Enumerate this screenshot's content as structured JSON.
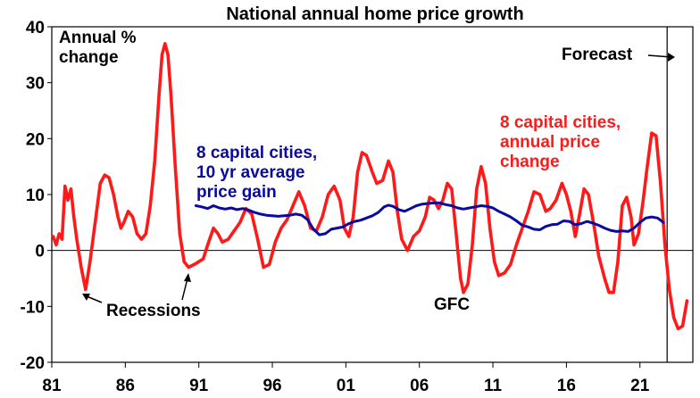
{
  "chart_data": {
    "type": "line",
    "title": "National annual home price growth",
    "ylabel_lines": [
      "Annual %",
      "change"
    ],
    "xlabel": "",
    "x_ticks": [
      "81",
      "86",
      "91",
      "96",
      "01",
      "06",
      "11",
      "16",
      "21"
    ],
    "x_tick_years": [
      1981,
      1986,
      1991,
      1996,
      2001,
      2006,
      2011,
      2016,
      2021
    ],
    "y_ticks": [
      "40",
      "30",
      "20",
      "10",
      "0",
      "-10",
      "-20"
    ],
    "ylim": [
      -20,
      40
    ],
    "xlim": [
      1981,
      2024.6
    ],
    "forecast_start": 2022.85,
    "grid": false,
    "series": [
      {
        "name": "8 capital cities, annual price change",
        "color": "#ff1a1a",
        "points": [
          [
            1981.1,
            2.5
          ],
          [
            1981.3,
            1.0
          ],
          [
            1981.5,
            3.0
          ],
          [
            1981.7,
            2.0
          ],
          [
            1981.9,
            11.5
          ],
          [
            1982.1,
            9.0
          ],
          [
            1982.3,
            11.0
          ],
          [
            1982.5,
            6.0
          ],
          [
            1982.7,
            2.0
          ],
          [
            1983.0,
            -3.0
          ],
          [
            1983.3,
            -7.0
          ],
          [
            1983.6,
            -2.0
          ],
          [
            1984.0,
            6.0
          ],
          [
            1984.3,
            12.0
          ],
          [
            1984.6,
            13.5
          ],
          [
            1984.9,
            13.0
          ],
          [
            1985.2,
            10.0
          ],
          [
            1985.5,
            6.0
          ],
          [
            1985.7,
            4.0
          ],
          [
            1985.9,
            5.0
          ],
          [
            1986.2,
            7.0
          ],
          [
            1986.5,
            6.0
          ],
          [
            1986.8,
            3.0
          ],
          [
            1987.1,
            2.0
          ],
          [
            1987.4,
            3.0
          ],
          [
            1987.7,
            8.0
          ],
          [
            1988.0,
            16.0
          ],
          [
            1988.3,
            28.0
          ],
          [
            1988.5,
            35.0
          ],
          [
            1988.7,
            37.0
          ],
          [
            1988.9,
            35.0
          ],
          [
            1989.1,
            28.0
          ],
          [
            1989.4,
            15.0
          ],
          [
            1989.7,
            3.0
          ],
          [
            1990.0,
            -2.0
          ],
          [
            1990.3,
            -3.0
          ],
          [
            1990.7,
            -2.5
          ],
          [
            1991.0,
            -2.0
          ],
          [
            1991.3,
            -1.5
          ],
          [
            1991.6,
            1.0
          ],
          [
            1992.0,
            4.0
          ],
          [
            1992.3,
            3.0
          ],
          [
            1992.6,
            1.5
          ],
          [
            1993.0,
            2.0
          ],
          [
            1993.4,
            3.5
          ],
          [
            1993.8,
            5.0
          ],
          [
            1994.2,
            7.5
          ],
          [
            1994.6,
            6.5
          ],
          [
            1995.0,
            2.0
          ],
          [
            1995.4,
            -3.0
          ],
          [
            1995.8,
            -2.5
          ],
          [
            1996.2,
            1.5
          ],
          [
            1996.6,
            4.0
          ],
          [
            1997.0,
            5.5
          ],
          [
            1997.4,
            8.0
          ],
          [
            1997.8,
            10.5
          ],
          [
            1998.2,
            8.0
          ],
          [
            1998.6,
            4.0
          ],
          [
            1999.0,
            3.5
          ],
          [
            1999.4,
            6.0
          ],
          [
            1999.8,
            10.0
          ],
          [
            2000.2,
            11.5
          ],
          [
            2000.6,
            9.0
          ],
          [
            2000.9,
            4.0
          ],
          [
            2001.2,
            2.5
          ],
          [
            2001.5,
            6.0
          ],
          [
            2001.8,
            14.0
          ],
          [
            2002.1,
            17.5
          ],
          [
            2002.4,
            17.0
          ],
          [
            2002.8,
            14.0
          ],
          [
            2003.1,
            12.0
          ],
          [
            2003.5,
            12.5
          ],
          [
            2003.9,
            16.0
          ],
          [
            2004.2,
            14.0
          ],
          [
            2004.5,
            7.0
          ],
          [
            2004.8,
            2.0
          ],
          [
            2005.2,
            0.0
          ],
          [
            2005.6,
            2.5
          ],
          [
            2006.0,
            3.5
          ],
          [
            2006.4,
            6.0
          ],
          [
            2006.7,
            9.5
          ],
          [
            2007.0,
            9.0
          ],
          [
            2007.3,
            7.5
          ],
          [
            2007.6,
            9.0
          ],
          [
            2007.9,
            12.0
          ],
          [
            2008.2,
            11.0
          ],
          [
            2008.5,
            3.0
          ],
          [
            2008.8,
            -5.0
          ],
          [
            2009.0,
            -7.5
          ],
          [
            2009.3,
            -6.0
          ],
          [
            2009.6,
            1.0
          ],
          [
            2009.9,
            11.0
          ],
          [
            2010.2,
            15.0
          ],
          [
            2010.5,
            12.0
          ],
          [
            2010.8,
            4.0
          ],
          [
            2011.1,
            -2.0
          ],
          [
            2011.4,
            -4.5
          ],
          [
            2011.8,
            -4.0
          ],
          [
            2012.2,
            -2.5
          ],
          [
            2012.6,
            1.0
          ],
          [
            2013.0,
            4.0
          ],
          [
            2013.4,
            7.0
          ],
          [
            2013.8,
            10.5
          ],
          [
            2014.2,
            10.0
          ],
          [
            2014.6,
            7.0
          ],
          [
            2014.9,
            7.5
          ],
          [
            2015.3,
            9.0
          ],
          [
            2015.7,
            12.0
          ],
          [
            2016.0,
            10.0
          ],
          [
            2016.3,
            7.0
          ],
          [
            2016.6,
            2.5
          ],
          [
            2016.9,
            6.5
          ],
          [
            2017.2,
            11.0
          ],
          [
            2017.5,
            10.0
          ],
          [
            2017.9,
            4.0
          ],
          [
            2018.2,
            -1.0
          ],
          [
            2018.6,
            -5.0
          ],
          [
            2018.9,
            -7.5
          ],
          [
            2019.2,
            -7.5
          ],
          [
            2019.5,
            -2.0
          ],
          [
            2019.8,
            8.0
          ],
          [
            2020.1,
            9.5
          ],
          [
            2020.4,
            6.0
          ],
          [
            2020.6,
            1.0
          ],
          [
            2020.9,
            3.0
          ],
          [
            2021.2,
            8.5
          ],
          [
            2021.5,
            15.0
          ],
          [
            2021.8,
            21.0
          ],
          [
            2022.1,
            20.5
          ],
          [
            2022.4,
            12.0
          ],
          [
            2022.7,
            1.0
          ],
          [
            2023.0,
            -7.0
          ],
          [
            2023.3,
            -12.0
          ],
          [
            2023.6,
            -14.0
          ],
          [
            2023.9,
            -13.5
          ],
          [
            2024.2,
            -9.0
          ]
        ]
      },
      {
        "name": "8 capital cities, 10 yr average price gain",
        "color": "#0a0aa0",
        "points": [
          [
            1990.8,
            8.0
          ],
          [
            1991.2,
            7.8
          ],
          [
            1991.6,
            7.5
          ],
          [
            1992.0,
            8.0
          ],
          [
            1992.4,
            7.6
          ],
          [
            1992.8,
            7.4
          ],
          [
            1993.2,
            7.6
          ],
          [
            1993.6,
            7.3
          ],
          [
            1994.0,
            7.5
          ],
          [
            1994.4,
            7.2
          ],
          [
            1994.8,
            6.8
          ],
          [
            1995.2,
            6.5
          ],
          [
            1995.6,
            6.3
          ],
          [
            1996.0,
            6.2
          ],
          [
            1996.4,
            6.1
          ],
          [
            1996.8,
            6.2
          ],
          [
            1997.2,
            6.3
          ],
          [
            1997.6,
            6.5
          ],
          [
            1998.0,
            6.3
          ],
          [
            1998.4,
            5.5
          ],
          [
            1998.8,
            3.8
          ],
          [
            1999.2,
            2.8
          ],
          [
            1999.6,
            3.0
          ],
          [
            2000.0,
            3.8
          ],
          [
            2000.4,
            4.0
          ],
          [
            2000.8,
            4.2
          ],
          [
            2001.2,
            4.8
          ],
          [
            2001.6,
            5.2
          ],
          [
            2002.0,
            5.4
          ],
          [
            2002.4,
            5.8
          ],
          [
            2002.8,
            6.2
          ],
          [
            2003.2,
            6.8
          ],
          [
            2003.6,
            7.8
          ],
          [
            2003.9,
            8.1
          ],
          [
            2004.2,
            7.9
          ],
          [
            2004.6,
            7.3
          ],
          [
            2005.0,
            7.0
          ],
          [
            2005.4,
            7.5
          ],
          [
            2005.8,
            8.0
          ],
          [
            2006.2,
            8.3
          ],
          [
            2006.6,
            8.4
          ],
          [
            2007.0,
            8.5
          ],
          [
            2007.4,
            8.5
          ],
          [
            2007.8,
            8.2
          ],
          [
            2008.2,
            8.0
          ],
          [
            2008.6,
            7.6
          ],
          [
            2009.0,
            7.4
          ],
          [
            2009.4,
            7.6
          ],
          [
            2009.8,
            7.8
          ],
          [
            2010.2,
            8.0
          ],
          [
            2010.6,
            7.9
          ],
          [
            2011.0,
            7.6
          ],
          [
            2011.4,
            7.0
          ],
          [
            2011.8,
            6.5
          ],
          [
            2012.2,
            6.0
          ],
          [
            2012.6,
            5.3
          ],
          [
            2013.0,
            4.5
          ],
          [
            2013.4,
            4.2
          ],
          [
            2013.8,
            3.8
          ],
          [
            2014.2,
            3.7
          ],
          [
            2014.6,
            4.3
          ],
          [
            2015.0,
            4.6
          ],
          [
            2015.4,
            4.7
          ],
          [
            2015.8,
            5.3
          ],
          [
            2016.2,
            5.2
          ],
          [
            2016.6,
            4.6
          ],
          [
            2017.0,
            4.8
          ],
          [
            2017.4,
            5.2
          ],
          [
            2017.8,
            4.9
          ],
          [
            2018.2,
            4.5
          ],
          [
            2018.6,
            4.0
          ],
          [
            2019.0,
            3.6
          ],
          [
            2019.4,
            3.4
          ],
          [
            2019.8,
            3.5
          ],
          [
            2020.2,
            3.4
          ],
          [
            2020.6,
            4.0
          ],
          [
            2021.0,
            5.0
          ],
          [
            2021.4,
            5.8
          ],
          [
            2021.8,
            6.0
          ],
          [
            2022.2,
            5.8
          ],
          [
            2022.6,
            5.0
          ]
        ]
      }
    ],
    "annotations": {
      "forecast": "Forecast",
      "red_series_label": [
        "8 capital cities,",
        "annual price",
        "change"
      ],
      "blue_series_label": [
        "8 capital cities,",
        "10 yr average",
        "price gain"
      ],
      "recessions": "Recessions",
      "gfc": "GFC"
    }
  }
}
